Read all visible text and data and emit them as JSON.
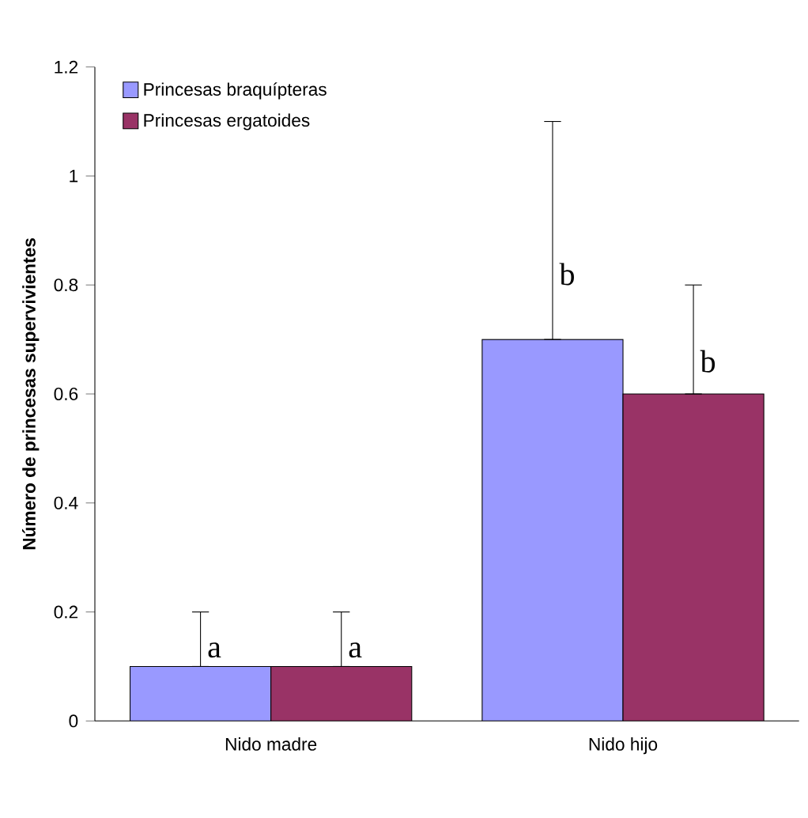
{
  "chart_data": {
    "type": "bar",
    "ylabel": "Número de princesas supervivientes",
    "categories": [
      "Nido madre",
      "Nido hijo"
    ],
    "series": [
      {
        "name": "Princesas braquípteras",
        "color": "#9999ff",
        "values": [
          0.1,
          0.7
        ],
        "errors": [
          [
            0.1,
            0.2
          ],
          [
            0.7,
            1.1
          ]
        ]
      },
      {
        "name": "Princesas ergatoides",
        "color": "#993366",
        "values": [
          0.1,
          0.6
        ],
        "errors": [
          [
            0.1,
            0.2
          ],
          [
            0.6,
            0.8
          ]
        ]
      }
    ],
    "ylim": [
      0,
      1.2
    ],
    "yticks": [
      0,
      0.2,
      0.4,
      0.6,
      0.8,
      1,
      1.2
    ],
    "legend": "top left",
    "grid": false,
    "annotations": [
      "a",
      "a",
      "b",
      "b"
    ]
  }
}
